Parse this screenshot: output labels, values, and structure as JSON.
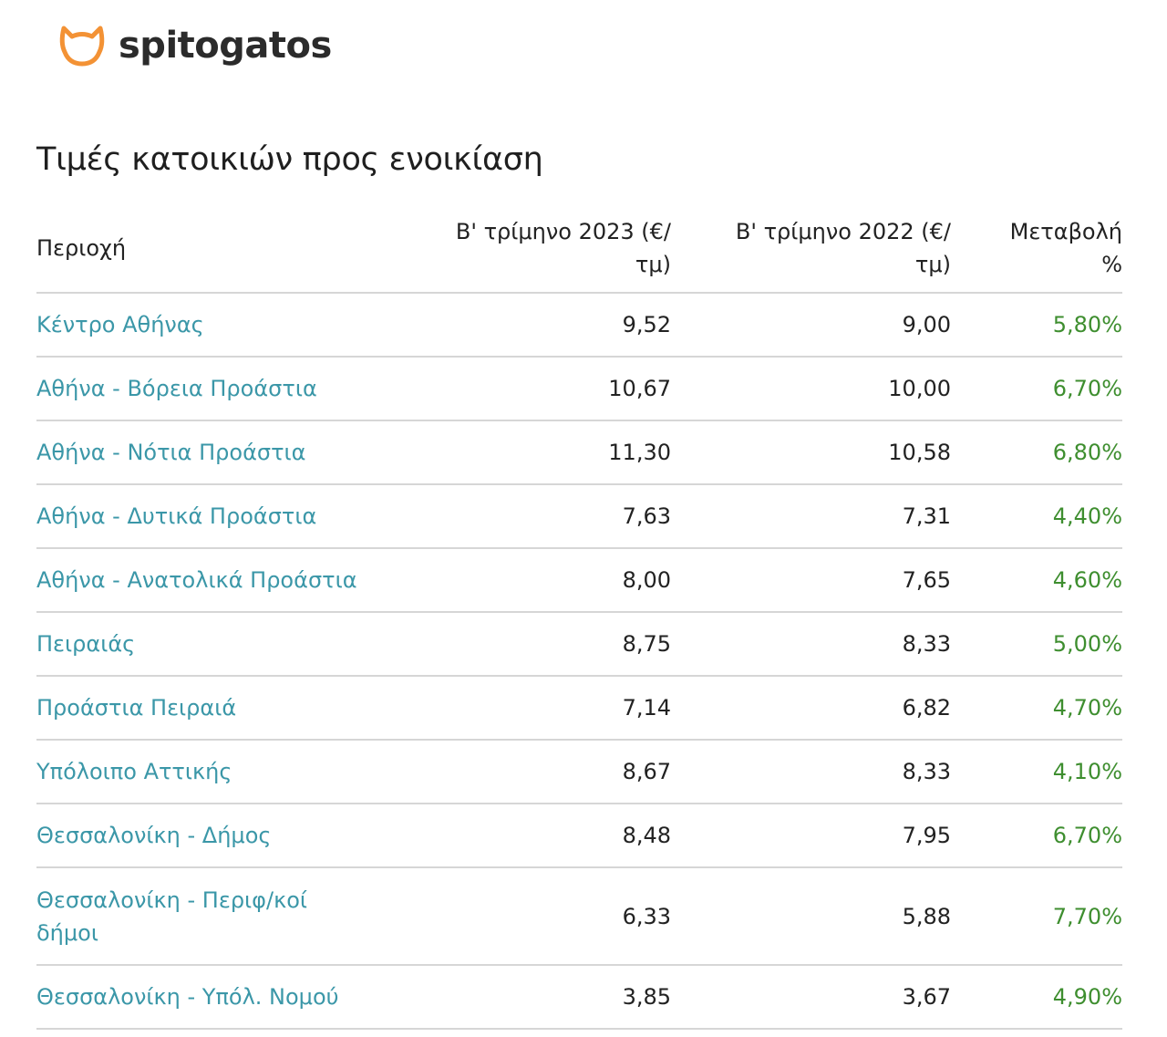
{
  "brand": {
    "name": "spitogatos",
    "logo_icon": "cat-head-icon",
    "logo_color": "#f39235"
  },
  "title": "Τιμές κατοικιών προς ενοικίαση",
  "table": {
    "headers": {
      "region": "Περιοχή",
      "q2_2023": "Β' τρίμηνο 2023 (€/τμ)",
      "q2_2022": "Β' τρίμηνο 2022 (€/τμ)",
      "change": "Μεταβολή %"
    },
    "rows": [
      {
        "region": "Κέντρο Αθήνας",
        "q2_2023": "9,52",
        "q2_2022": "9,00",
        "change": "5,80%"
      },
      {
        "region": "Αθήνα - Βόρεια Προάστια",
        "q2_2023": "10,67",
        "q2_2022": "10,00",
        "change": "6,70%"
      },
      {
        "region": "Αθήνα - Νότια Προάστια",
        "q2_2023": "11,30",
        "q2_2022": "10,58",
        "change": "6,80%"
      },
      {
        "region": "Αθήνα - Δυτικά Προάστια",
        "q2_2023": "7,63",
        "q2_2022": "7,31",
        "change": "4,40%"
      },
      {
        "region": "Αθήνα - Ανατολικά Προάστια",
        "q2_2023": "8,00",
        "q2_2022": "7,65",
        "change": "4,60%"
      },
      {
        "region": "Πειραιάς",
        "q2_2023": "8,75",
        "q2_2022": "8,33",
        "change": "5,00%"
      },
      {
        "region": "Προάστια Πειραιά",
        "q2_2023": "7,14",
        "q2_2022": "6,82",
        "change": "4,70%"
      },
      {
        "region": "Υπόλοιπο Αττικής",
        "q2_2023": "8,67",
        "q2_2022": "8,33",
        "change": "4,10%"
      },
      {
        "region": "Θεσσαλονίκη - Δήμος",
        "q2_2023": "8,48",
        "q2_2022": "7,95",
        "change": "6,70%"
      },
      {
        "region": "Θεσσαλονίκη - Περιφ/κοί δήμοι",
        "q2_2023": "6,33",
        "q2_2022": "5,88",
        "change": "7,70%"
      },
      {
        "region": "Θεσσαλονίκη - Υπόλ. Νομού",
        "q2_2023": "3,85",
        "q2_2022": "3,67",
        "change": "4,90%"
      }
    ]
  },
  "colors": {
    "region_link": "#3b97a8",
    "positive_change": "#3e8e2f",
    "divider": "#d6d6d6"
  }
}
